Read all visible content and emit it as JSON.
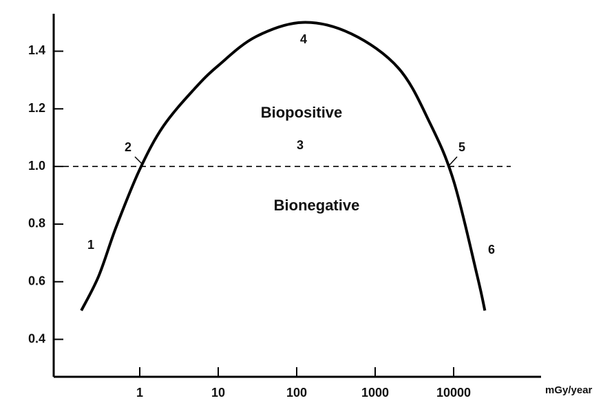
{
  "chart_data": {
    "type": "line",
    "log_x": true,
    "x": [
      0.18,
      0.3,
      0.5,
      1,
      2,
      5,
      10,
      30,
      120,
      500,
      2000,
      5000,
      10000,
      20000,
      25000
    ],
    "series": [
      {
        "color": "#000000",
        "values": [
          0.5,
          0.62,
          0.79,
          0.99,
          1.14,
          1.27,
          1.35,
          1.45,
          1.5,
          1.46,
          1.34,
          1.15,
          0.95,
          0.62,
          0.5
        ]
      }
    ],
    "xlim": [
      0.08,
      130000
    ],
    "xticks": [
      1,
      10,
      100,
      1000,
      10000
    ],
    "x_label": "mGy/year",
    "ylim": [
      0.27,
      1.53
    ],
    "yticks": [
      1.4,
      1.2,
      {
        "value": 1,
        "label": "1.0"
      },
      0.8,
      0.6,
      0.4
    ],
    "reference_line": {
      "value": 1,
      "style": "dashed"
    },
    "annotations": [
      "1",
      "2",
      "3",
      "4",
      "5",
      "6",
      "Biopositive",
      "Bionegative"
    ],
    "grid": false
  }
}
